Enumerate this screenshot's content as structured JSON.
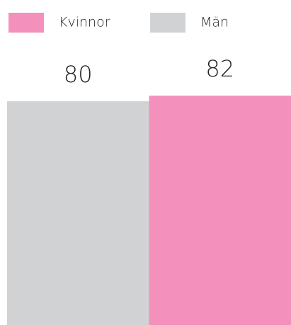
{
  "chart_data": {
    "type": "bar",
    "categories": [
      null
    ],
    "series": [
      {
        "name": "Män",
        "color": "#d1d2d4",
        "values": [
          80
        ]
      },
      {
        "name": "Kvinnor",
        "color": "#f390bc",
        "values": [
          82
        ]
      }
    ],
    "ylim": [
      0,
      100
    ]
  }
}
